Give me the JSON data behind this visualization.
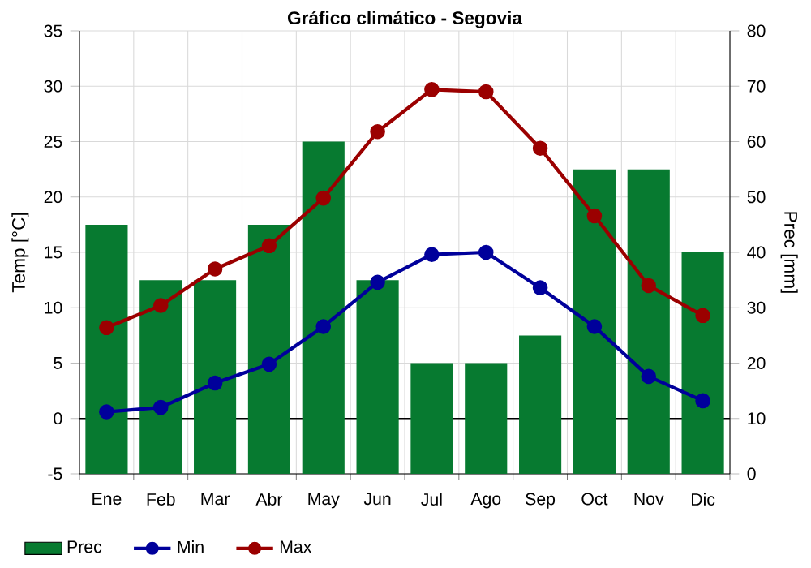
{
  "chart_data": {
    "type": "line",
    "title": "Gráfico climático - Segovia",
    "ylabel": "Temp [°C]",
    "y2label": "Prec [mm]",
    "categories": [
      "Ene",
      "Feb",
      "Mar",
      "Abr",
      "May",
      "Jun",
      "Jul",
      "Ago",
      "Sep",
      "Oct",
      "Nov",
      "Dic"
    ],
    "series": [
      {
        "name": "Prec",
        "type": "bar",
        "axis": "y2",
        "color": "#077a30",
        "values": [
          45,
          35,
          35,
          45,
          60,
          35,
          20,
          20,
          25,
          55,
          55,
          40
        ]
      },
      {
        "name": "Min",
        "color": "#00009b",
        "values": [
          0.6,
          1.0,
          3.2,
          4.9,
          8.3,
          12.3,
          14.8,
          15.0,
          11.8,
          8.3,
          3.8,
          1.6
        ]
      },
      {
        "name": "Max",
        "color": "#9b0000",
        "values": [
          8.2,
          10.2,
          13.5,
          15.6,
          19.9,
          25.9,
          29.7,
          29.5,
          24.4,
          18.3,
          12.0,
          9.3
        ]
      }
    ],
    "ylim": [
      -5,
      35
    ],
    "yticks": [
      -5,
      0,
      5,
      10,
      15,
      20,
      25,
      30,
      35
    ],
    "y2lim": [
      0,
      80
    ],
    "y2ticks": [
      0,
      10,
      20,
      30,
      40,
      50,
      60,
      70,
      80
    ],
    "ref_lines": [
      {
        "axis": "y",
        "value": 0,
        "color": "#000000"
      }
    ],
    "grid": true,
    "legend": "bottom",
    "marker": "circle",
    "line_style": "solid"
  }
}
